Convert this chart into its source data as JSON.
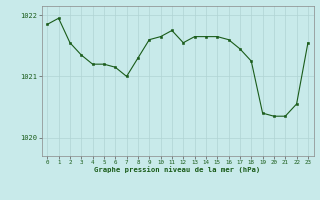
{
  "x": [
    0,
    1,
    2,
    3,
    4,
    5,
    6,
    7,
    8,
    9,
    10,
    11,
    12,
    13,
    14,
    15,
    16,
    17,
    18,
    19,
    20,
    21,
    22,
    23
  ],
  "y": [
    1021.85,
    1021.95,
    1021.55,
    1021.35,
    1021.2,
    1021.2,
    1021.15,
    1021.0,
    1021.3,
    1021.6,
    1021.65,
    1021.75,
    1021.55,
    1021.65,
    1021.65,
    1021.65,
    1021.6,
    1021.45,
    1021.25,
    1020.4,
    1020.35,
    1020.35,
    1020.55,
    1021.55
  ],
  "ylim": [
    1019.7,
    1022.15
  ],
  "yticks": [
    1020,
    1021,
    1022
  ],
  "xlabel": "Graphe pression niveau de la mer (hPa)",
  "line_color": "#1a5c1a",
  "marker_color": "#1a5c1a",
  "bg_color": "#c8eaea",
  "grid_color": "#b0d4d4",
  "label_color": "#1a5c1a",
  "figsize": [
    3.2,
    2.0
  ],
  "dpi": 100
}
